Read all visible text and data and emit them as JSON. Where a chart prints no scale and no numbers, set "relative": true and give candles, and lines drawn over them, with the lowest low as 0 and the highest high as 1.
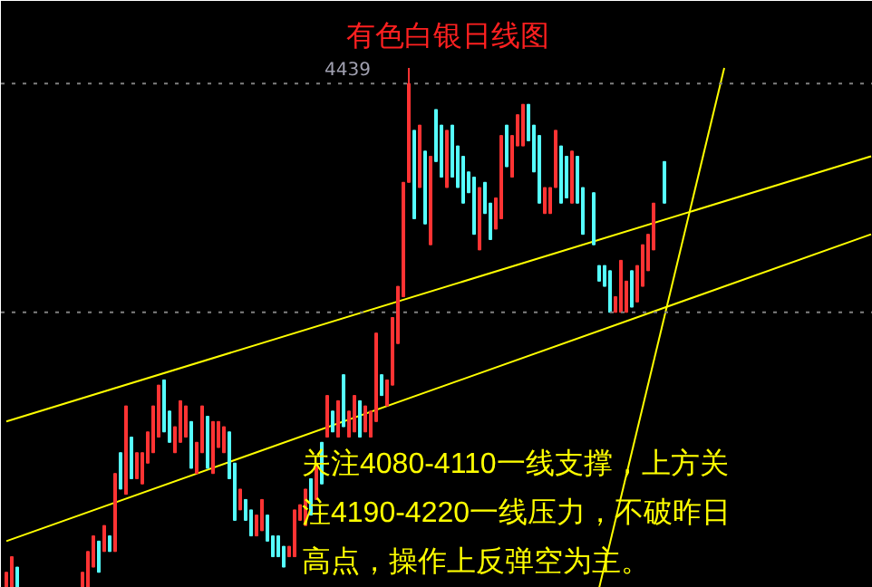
{
  "chart_data": {
    "type": "candlestick",
    "relative": true,
    "title": "有色白银日线图",
    "annotations": [
      "关注4080-4110一线支撑，上方关注4190-4220一线压力，不破昨日高点，操作上反弹空为主。",
      "4439"
    ],
    "categories": [
      null,
      null,
      null,
      null,
      null,
      null,
      null,
      null,
      null,
      null,
      null,
      null,
      null,
      null,
      null,
      null,
      null,
      null,
      null,
      null,
      null,
      null,
      null,
      null,
      null,
      null,
      null,
      null,
      null,
      null,
      null,
      null,
      null,
      null,
      null,
      null,
      null,
      null,
      null,
      null,
      null,
      null,
      null,
      null,
      null,
      null,
      null,
      null,
      null,
      null,
      null,
      null,
      null,
      null,
      null,
      null,
      null,
      null,
      null,
      null,
      null,
      null,
      null,
      null,
      null,
      null,
      null,
      null,
      null,
      null,
      null,
      null,
      null,
      null,
      null,
      null,
      null,
      null,
      null,
      null,
      null,
      null,
      null,
      null,
      null,
      null,
      null,
      null,
      null,
      null,
      null,
      null,
      null,
      null,
      null,
      null,
      null,
      null,
      null,
      null,
      null,
      null,
      null,
      null,
      null,
      null,
      null,
      null,
      null,
      null,
      null,
      null,
      null,
      null,
      null,
      null,
      null,
      null,
      null,
      null,
      null,
      null,
      null,
      null,
      null,
      null,
      null,
      null,
      null,
      null,
      null,
      null,
      null,
      null,
      null,
      null,
      null,
      null,
      null,
      null,
      null,
      null,
      null,
      null,
      null,
      null,
      null,
      null,
      null,
      null,
      null,
      null,
      null,
      null,
      null,
      null,
      null,
      null,
      null,
      null
    ],
    "ohlc": [
      [
        0,
        0.03,
        0,
        0.03
      ],
      [
        0,
        0.06,
        0,
        0.06
      ],
      [
        0.04,
        0.04,
        0,
        0
      ],
      null,
      null,
      null,
      null,
      null,
      null,
      null,
      null,
      null,
      null,
      null,
      [
        0,
        0.03,
        0,
        0.03
      ],
      [
        0,
        0.07,
        0,
        0.07
      ],
      [
        0.04,
        0.1,
        0.04,
        0.1
      ],
      [
        0.09,
        0.09,
        0.03,
        0.03
      ],
      [
        0.07,
        0.12,
        0.07,
        0.12
      ],
      [
        0.1,
        0.1,
        0.07,
        0.07
      ],
      [
        0.07,
        0.22,
        0.07,
        0.22
      ],
      [
        0.26,
        0.26,
        0.19,
        0.19
      ],
      [
        0.18,
        0.35,
        0.18,
        0.35
      ],
      [
        0.29,
        0.29,
        0.21,
        0.21
      ],
      [
        0.21,
        0.26,
        0.21,
        0.26
      ],
      [
        0.2,
        0.26,
        0.2,
        0.26
      ],
      [
        0.24,
        0.3,
        0.24,
        0.3
      ],
      [
        0.26,
        0.35,
        0.26,
        0.35
      ],
      [
        0.29,
        0.39,
        0.29,
        0.39
      ],
      [
        0.4,
        0.4,
        0.3,
        0.3
      ],
      [
        0.34,
        0.34,
        0.28,
        0.28
      ],
      [
        0.26,
        0.31,
        0.26,
        0.31
      ],
      [
        0.28,
        0.36,
        0.28,
        0.36
      ],
      [
        0.29,
        0.35,
        0.29,
        0.35
      ],
      [
        0.32,
        0.32,
        0.23,
        0.23
      ],
      [
        0.22,
        0.28,
        0.22,
        0.28
      ],
      [
        0.26,
        0.35,
        0.26,
        0.35
      ],
      [
        0.33,
        0.33,
        0.23,
        0.23
      ],
      [
        0.22,
        0.32,
        0.22,
        0.32
      ],
      [
        0.27,
        0.32,
        0.27,
        0.32
      ],
      [
        0.26,
        0.31,
        0.26,
        0.31
      ],
      [
        0.3,
        0.3,
        0.21,
        0.21
      ],
      [
        0.24,
        0.24,
        0.13,
        0.13
      ],
      [
        0.15,
        0.19,
        0.15,
        0.19
      ],
      [
        0.17,
        0.17,
        0.13,
        0.13
      ],
      [
        0.15,
        0.15,
        0.1,
        0.1
      ],
      [
        0.1,
        0.14,
        0.1,
        0.14
      ],
      [
        0.11,
        0.17,
        0.11,
        0.17
      ],
      [
        0.14,
        0.14,
        0.09,
        0.09
      ],
      [
        0.1,
        0.1,
        0.06,
        0.06
      ],
      [
        0.1,
        0.1,
        0.06,
        0.06
      ],
      [
        0.08,
        0.08,
        0.04,
        0.04
      ],
      [
        0.06,
        0.08,
        0.06,
        0.08
      ],
      [
        0.06,
        0.15,
        0.06,
        0.15
      ],
      [
        0.13,
        0.16,
        0.13,
        0.16
      ],
      [
        0.12,
        0.19,
        0.12,
        0.19
      ],
      [
        0.21,
        0.21,
        0.14,
        0.14
      ],
      [
        0.17,
        0.24,
        0.17,
        0.24
      ],
      [
        0.28,
        0.28,
        0.2,
        0.2
      ],
      [
        0.29,
        0.37,
        0.29,
        0.37
      ],
      [
        0.34,
        0.34,
        0.3,
        0.3
      ],
      [
        0.29,
        0.36,
        0.29,
        0.36
      ],
      [
        0.41,
        0.41,
        0.31,
        0.31
      ],
      [
        0.29,
        0.34,
        0.29,
        0.34
      ],
      [
        0.3,
        0.37,
        0.3,
        0.37
      ],
      [
        0.36,
        0.36,
        0.29,
        0.29
      ],
      [
        0.3,
        0.35,
        0.3,
        0.35
      ],
      [
        0.29,
        0.34,
        0.29,
        0.34
      ],
      [
        0.32,
        0.49,
        0.32,
        0.49
      ],
      [
        0.41,
        0.41,
        0.37,
        0.37
      ],
      [
        0.35,
        0.4,
        0.35,
        0.4
      ],
      [
        0.39,
        0.52,
        0.39,
        0.52
      ],
      [
        0.47,
        0.58,
        0.47,
        0.58
      ],
      [
        0.56,
        0.78,
        0.56,
        0.78
      ],
      [
        0.78,
        1,
        0.78,
        0.97
      ],
      [
        0.88,
        0.88,
        0.71,
        0.71
      ],
      [
        0.77,
        0.89,
        0.77,
        0.89
      ],
      [
        0.84,
        0.84,
        0.7,
        0.7
      ],
      [
        0.66,
        0.83,
        0.66,
        0.83
      ],
      [
        0.92,
        0.92,
        0.82,
        0.82
      ],
      [
        0.89,
        0.89,
        0.79,
        0.79
      ],
      [
        0.77,
        0.88,
        0.77,
        0.88
      ],
      [
        0.89,
        0.89,
        0.79,
        0.79
      ],
      [
        0.85,
        0.85,
        0.77,
        0.77
      ],
      [
        0.83,
        0.83,
        0.74,
        0.74
      ],
      [
        0.8,
        0.8,
        0.76,
        0.76
      ],
      [
        0.79,
        0.79,
        0.68,
        0.68
      ],
      [
        0.65,
        0.77,
        0.65,
        0.77
      ],
      [
        0.78,
        0.78,
        0.72,
        0.72
      ],
      [
        0.74,
        0.74,
        0.67,
        0.67
      ],
      [
        0.69,
        0.75,
        0.69,
        0.75
      ],
      [
        0.71,
        0.87,
        0.71,
        0.87
      ],
      [
        0.89,
        0.89,
        0.81,
        0.81
      ],
      [
        0.79,
        0.87,
        0.79,
        0.87
      ],
      [
        0.85,
        0.91,
        0.85,
        0.91
      ],
      [
        0.85,
        0.93,
        0.85,
        0.93
      ],
      [
        0.93,
        0.93,
        0.86,
        0.86
      ],
      [
        0.89,
        0.89,
        0.8,
        0.8
      ],
      [
        0.87,
        0.87,
        0.74,
        0.74
      ],
      [
        0.72,
        0.77,
        0.72,
        0.77
      ],
      [
        0.72,
        0.77,
        0.72,
        0.77
      ],
      [
        0.77,
        0.88,
        0.77,
        0.88
      ],
      [
        0.85,
        0.85,
        0.74,
        0.74
      ],
      [
        0.83,
        0.83,
        0.75,
        0.75
      ],
      [
        0.74,
        0.84,
        0.74,
        0.84
      ],
      [
        0.83,
        0.83,
        0.74,
        0.74
      ],
      [
        0.77,
        0.77,
        0.68,
        0.68
      ],
      null,
      [
        0.76,
        0.76,
        0.66,
        0.66
      ],
      [
        0.62,
        0.62,
        0.59,
        0.59
      ],
      [
        0.62,
        0.62,
        0.58,
        0.58
      ],
      [
        0.61,
        0.61,
        0.53,
        0.53
      ],
      [
        0.53,
        0.56,
        0.53,
        0.56
      ],
      [
        0.53,
        0.63,
        0.53,
        0.63
      ],
      [
        0.53,
        0.59,
        0.53,
        0.59
      ],
      [
        0.61,
        0.61,
        0.54,
        0.54
      ],
      [
        0.55,
        0.62,
        0.55,
        0.62
      ],
      [
        0.58,
        0.66,
        0.58,
        0.66
      ],
      [
        0.61,
        0.68,
        0.61,
        0.68
      ],
      [
        0.65,
        0.74,
        0.65,
        0.74
      ],
      null,
      [
        0.82,
        0.82,
        0.74,
        0.74
      ],
      null,
      null,
      null,
      null,
      null,
      null,
      null,
      null,
      null,
      null,
      null,
      null,
      null,
      null,
      null,
      null,
      null,
      null,
      null,
      null,
      null,
      null,
      null,
      null,
      null,
      null,
      null,
      null,
      null,
      null,
      null,
      null,
      null,
      null,
      null,
      null,
      null,
      null
    ],
    "colors": [
      "#ff3333",
      "#ff3333",
      "#55ffff",
      null,
      null,
      null,
      null,
      null,
      null,
      null,
      null,
      null,
      null,
      null,
      "#ff3333",
      "#ff3333",
      "#ff3333",
      "#55ffff",
      "#ff3333",
      "#55ffff",
      "#ff3333",
      "#55ffff",
      "#ff3333",
      "#55ffff",
      "#ff3333",
      "#ff3333",
      "#ff3333",
      "#ff3333",
      "#ff3333",
      "#55ffff",
      "#55ffff",
      "#ff3333",
      "#ff3333",
      "#ff3333",
      "#55ffff",
      "#ff3333",
      "#ff3333",
      "#55ffff",
      "#ff3333",
      "#ff3333",
      "#ff3333",
      "#55ffff",
      "#55ffff",
      "#ff3333",
      "#55ffff",
      "#55ffff",
      "#ff3333",
      "#ff3333",
      "#55ffff",
      "#55ffff",
      "#55ffff",
      "#55ffff",
      "#ff3333",
      "#ff3333",
      "#ff3333",
      "#ff3333",
      "#55ffff",
      "#ff3333",
      "#55ffff",
      "#ff3333",
      "#55ffff",
      "#ff3333",
      "#55ffff",
      "#ff3333",
      "#ff3333",
      "#55ffff",
      "#ff3333",
      "#ff3333",
      "#ff3333",
      "#55ffff",
      "#ff3333",
      "#ff3333",
      "#ff3333",
      "#ff3333",
      "#ff3333",
      "#55ffff",
      "#ff3333",
      "#55ffff",
      "#ff3333",
      "#55ffff",
      "#55ffff",
      "#ff3333",
      "#55ffff",
      "#55ffff",
      "#55ffff",
      "#55ffff",
      "#55ffff",
      "#ff3333",
      "#55ffff",
      "#55ffff",
      "#ff3333",
      "#ff3333",
      "#55ffff",
      "#ff3333",
      "#ff3333",
      "#ff3333",
      "#55ffff",
      "#55ffff",
      "#55ffff",
      "#ff3333",
      "#ff3333",
      "#ff3333",
      "#55ffff",
      "#55ffff",
      "#ff3333",
      "#55ffff",
      "#55ffff",
      null,
      "#55ffff",
      "#55ffff",
      "#55ffff",
      "#55ffff",
      "#ff3333",
      "#ff3333",
      "#ff3333",
      "#55ffff",
      "#ff3333",
      "#ff3333",
      "#ff3333",
      "#ff3333",
      null,
      "#55ffff",
      null,
      null,
      null,
      null,
      null,
      null,
      null,
      null,
      null,
      null,
      null,
      null,
      null,
      null,
      null,
      null,
      null,
      null,
      null,
      null,
      null,
      null,
      null,
      null,
      null,
      null,
      null,
      null,
      null,
      null,
      null,
      null,
      null,
      null,
      null,
      null,
      null,
      null
    ],
    "series": [
      {
        "type": "line",
        "color": "#ffff00",
        "values": [
          0.32,
          null,
          null,
          null,
          null,
          null,
          null,
          null,
          null,
          null,
          null,
          null,
          null,
          null,
          null,
          null,
          null,
          null,
          null,
          null,
          null,
          null,
          null,
          null,
          null,
          null,
          null,
          null,
          null,
          null,
          null,
          null,
          null,
          null,
          null,
          null,
          null,
          null,
          null,
          null,
          null,
          null,
          null,
          null,
          null,
          null,
          null,
          null,
          null,
          null,
          null,
          null,
          null,
          null,
          null,
          null,
          null,
          null,
          null,
          null,
          null,
          null,
          null,
          null,
          null,
          null,
          null,
          null,
          null,
          null,
          null,
          null,
          null,
          null,
          null,
          null,
          null,
          null,
          null,
          null,
          null,
          null,
          null,
          null,
          null,
          null,
          null,
          null,
          null,
          null,
          null,
          null,
          null,
          null,
          null,
          null,
          null,
          null,
          null,
          null,
          null,
          null,
          null,
          null,
          null,
          null,
          null,
          null,
          null,
          null,
          null,
          null,
          null,
          null,
          null,
          null,
          null,
          null,
          null,
          null,
          null,
          null,
          null,
          null,
          null,
          null,
          null,
          null,
          null,
          null,
          null,
          null,
          null,
          null,
          null,
          null,
          null,
          null,
          null,
          null,
          null,
          null,
          null,
          null,
          null,
          null,
          null,
          null,
          null,
          null,
          null,
          null,
          null,
          null,
          null,
          null,
          null,
          null,
          null,
          0.83
        ]
      },
      {
        "type": "line",
        "color": "#ffff00",
        "values": [
          0.09,
          null,
          null,
          null,
          null,
          null,
          null,
          null,
          null,
          null,
          null,
          null,
          null,
          null,
          null,
          null,
          null,
          null,
          null,
          null,
          null,
          null,
          null,
          null,
          null,
          null,
          null,
          null,
          null,
          null,
          null,
          null,
          null,
          null,
          null,
          null,
          null,
          null,
          null,
          null,
          null,
          null,
          null,
          null,
          null,
          null,
          null,
          null,
          null,
          null,
          null,
          null,
          null,
          null,
          null,
          null,
          null,
          null,
          null,
          null,
          null,
          null,
          null,
          null,
          null,
          null,
          null,
          null,
          null,
          null,
          null,
          null,
          null,
          null,
          null,
          null,
          null,
          null,
          null,
          null,
          null,
          null,
          null,
          null,
          null,
          null,
          null,
          null,
          null,
          null,
          null,
          null,
          null,
          null,
          null,
          null,
          null,
          null,
          null,
          null,
          null,
          null,
          null,
          null,
          null,
          null,
          null,
          null,
          null,
          null,
          null,
          null,
          null,
          null,
          null,
          null,
          null,
          null,
          null,
          null,
          null,
          null,
          null,
          null,
          null,
          null,
          null,
          null,
          null,
          null,
          null,
          null,
          null,
          null,
          null,
          null,
          null,
          null,
          null,
          null,
          null,
          null,
          null,
          null,
          null,
          null,
          null,
          null,
          null,
          null,
          null,
          null,
          null,
          null,
          null,
          null,
          null,
          null,
          null,
          0.68
        ]
      },
      {
        "type": "line",
        "color": "#ffff00",
        "values": [
          null,
          null,
          null,
          null,
          null,
          null,
          null,
          null,
          null,
          null,
          null,
          null,
          null,
          null,
          null,
          null,
          null,
          null,
          null,
          null,
          null,
          null,
          null,
          null,
          null,
          null,
          null,
          null,
          null,
          null,
          null,
          null,
          null,
          null,
          null,
          null,
          null,
          null,
          null,
          null,
          null,
          null,
          null,
          null,
          null,
          null,
          null,
          null,
          null,
          null,
          null,
          null,
          null,
          null,
          null,
          null,
          null,
          null,
          null,
          null,
          null,
          null,
          null,
          null,
          null,
          null,
          null,
          null,
          null,
          null,
          null,
          null,
          null,
          null,
          null,
          null,
          null,
          null,
          null,
          null,
          null,
          null,
          null,
          null,
          null,
          null,
          null,
          null,
          null,
          null,
          null,
          null,
          null,
          null,
          null,
          null,
          null,
          null,
          null,
          null,
          null,
          null,
          null,
          null,
          null,
          null,
          null,
          null,
          null,
          0,
          null,
          null,
          null,
          null,
          null,
          null,
          null,
          null,
          null,
          null,
          null,
          null,
          null,
          null,
          null,
          null,
          null,
          null,
          null,
          null,
          null,
          null,
          1,
          null,
          null,
          null,
          null,
          null,
          null,
          null,
          null,
          null,
          null,
          null,
          null,
          null,
          null,
          null,
          null,
          null,
          null,
          null,
          null,
          null,
          null,
          null,
          null,
          null,
          null,
          null
        ]
      }
    ],
    "ref_lines": [
      {
        "axis": "y",
        "value": 0.53,
        "color": "#808080",
        "line_style": "dotted"
      },
      {
        "axis": "y",
        "value": 0.97,
        "color": "#808080",
        "line_style": "dotted"
      }
    ]
  }
}
